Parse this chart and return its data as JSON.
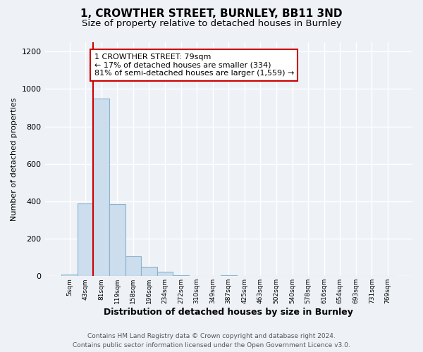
{
  "title": "1, CROWTHER STREET, BURNLEY, BB11 3ND",
  "subtitle": "Size of property relative to detached houses in Burnley",
  "xlabel": "Distribution of detached houses by size in Burnley",
  "ylabel": "Number of detached properties",
  "bar_labels": [
    "5sqm",
    "43sqm",
    "81sqm",
    "119sqm",
    "158sqm",
    "196sqm",
    "234sqm",
    "272sqm",
    "310sqm",
    "349sqm",
    "387sqm",
    "425sqm",
    "463sqm",
    "502sqm",
    "540sqm",
    "578sqm",
    "616sqm",
    "654sqm",
    "693sqm",
    "731sqm",
    "769sqm"
  ],
  "bar_values": [
    10,
    390,
    950,
    385,
    108,
    50,
    22,
    5,
    0,
    0,
    5,
    0,
    0,
    0,
    0,
    0,
    0,
    0,
    0,
    0,
    0
  ],
  "bar_color": "#ccdded",
  "bar_edge_color": "#8ab4cc",
  "vline_x": 1.5,
  "vline_color": "#cc0000",
  "annotation_line1": "1 CROWTHER STREET: 79sqm",
  "annotation_line2": "← 17% of detached houses are smaller (334)",
  "annotation_line3": "81% of semi-detached houses are larger (1,559) →",
  "annotation_box_color": "#ffffff",
  "annotation_box_edge_color": "#cc0000",
  "ylim": [
    0,
    1250
  ],
  "yticks": [
    0,
    200,
    400,
    600,
    800,
    1000,
    1200
  ],
  "footer_line1": "Contains HM Land Registry data © Crown copyright and database right 2024.",
  "footer_line2": "Contains public sector information licensed under the Open Government Licence v3.0.",
  "background_color": "#eef2f7",
  "plot_background_color": "#eef2f7",
  "grid_color": "#ffffff",
  "title_fontsize": 11,
  "subtitle_fontsize": 9.5,
  "annotation_fontsize": 8,
  "footer_fontsize": 6.5,
  "xlabel_fontsize": 9,
  "ylabel_fontsize": 8
}
